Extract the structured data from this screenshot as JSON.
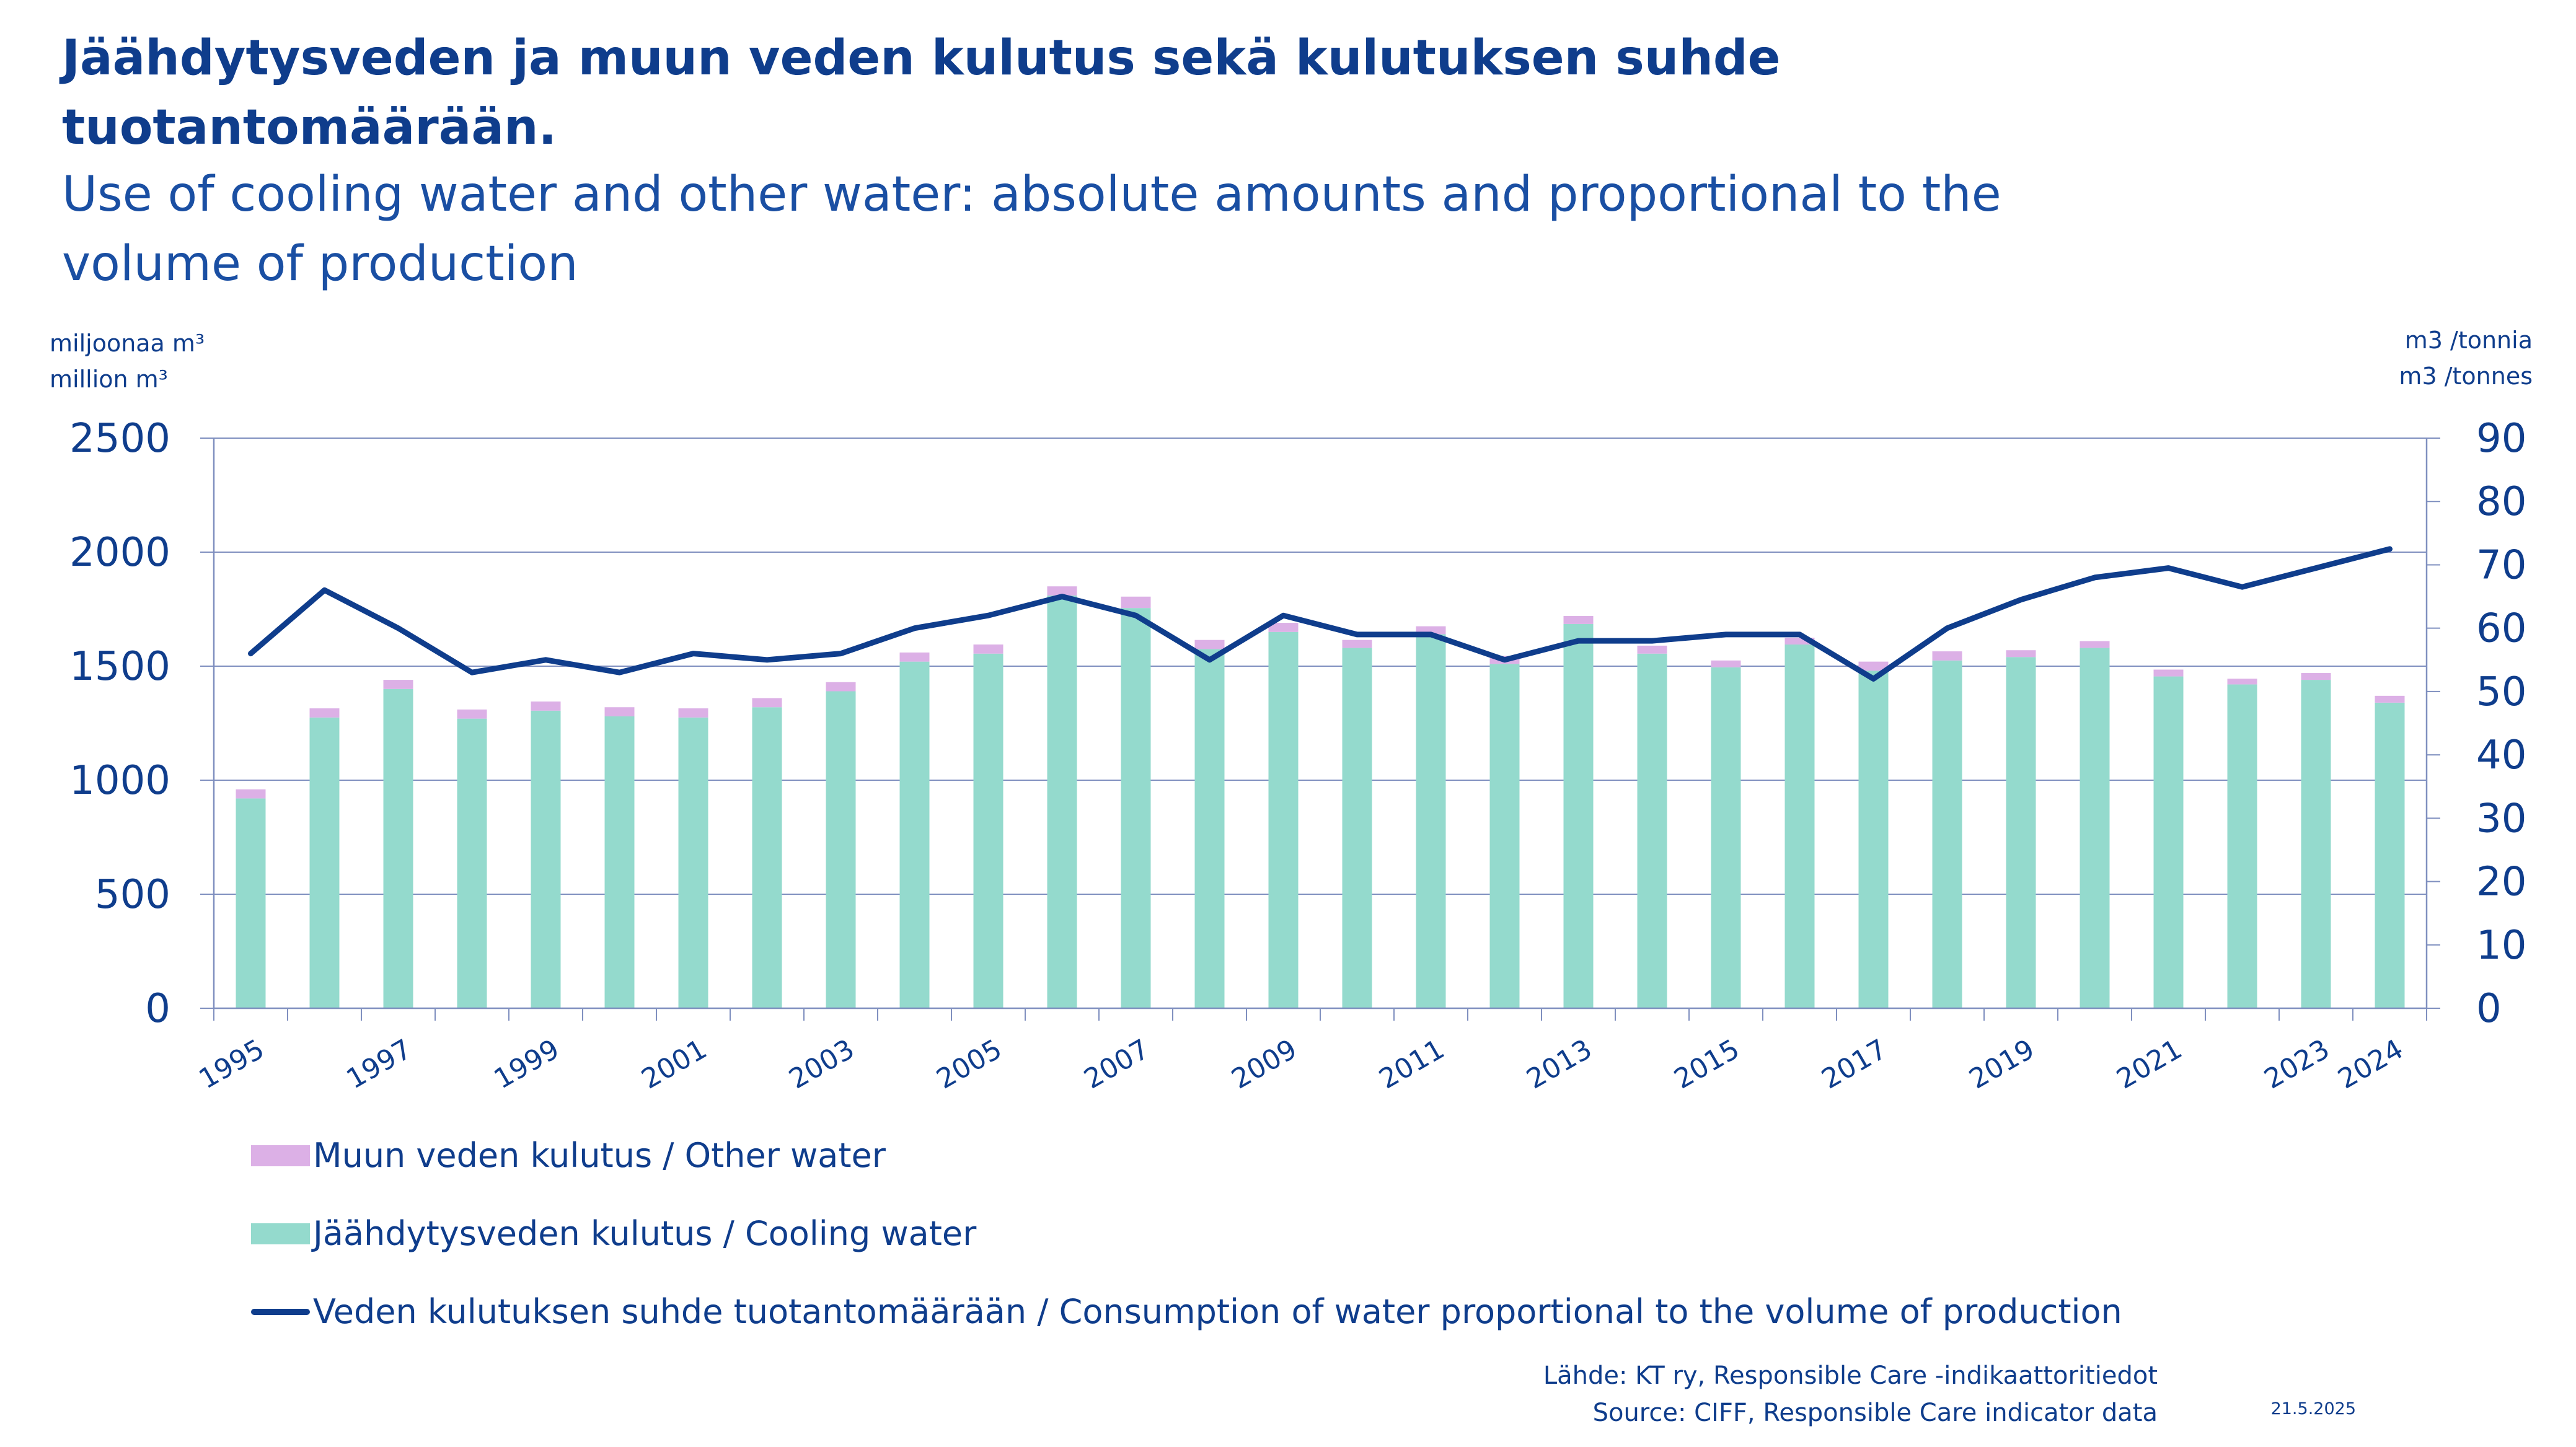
{
  "title": {
    "fi_line1": "Jäähdytysveden ja muun veden kulutus sekä kulutuksen suhde",
    "fi_line2": "tuotantomäärään.",
    "en_line1": "Use of cooling water and other water: absolute amounts and proportional to the",
    "en_line2": "volume of production"
  },
  "axis_units": {
    "left_fi": "miljoonaa m³",
    "left_en": "million m³",
    "right_fi": "m3 /tonnia",
    "right_en": "m3 /tonnes"
  },
  "legend": {
    "other_water": "Muun veden kulutus / Other water",
    "cooling_water": "Jäähdytysveden kulutus / Cooling water",
    "ratio": "Veden kulutuksen suhde tuotantomäärään / Consumption of water proportional to the volume of production"
  },
  "source": {
    "fi": "Lähde: KT ry, Responsible Care -indikaattoritiedot",
    "en": "Source: CIFF, Responsible Care indicator data"
  },
  "date": "21.5.2025",
  "colors": {
    "cooling": "#94dacd",
    "other": "#dcb0e6",
    "line": "#0f3d8c",
    "grid": "#7f8fbf",
    "text": "#0f3d8c"
  },
  "chart_data": {
    "type": "bar",
    "stacked": true,
    "categories": [
      "1995",
      "1996",
      "1997",
      "1998",
      "1999",
      "2000",
      "2001",
      "2002",
      "2003",
      "2004",
      "2005",
      "2006",
      "2007",
      "2008",
      "2009",
      "2010",
      "2011",
      "2012",
      "2013",
      "2014",
      "2015",
      "2016",
      "2017",
      "2018",
      "2019",
      "2020",
      "2021",
      "2022",
      "2023",
      "2024"
    ],
    "x_tick_labels": [
      "1995",
      "1997",
      "1999",
      "2001",
      "2003",
      "2005",
      "2007",
      "2009",
      "2011",
      "2013",
      "2015",
      "2017",
      "2019",
      "2021",
      "2023",
      "2024"
    ],
    "series": [
      {
        "name": "Jäähdytysveden kulutus / Cooling water",
        "axis": "left",
        "type": "bar",
        "values": [
          920,
          1275,
          1400,
          1270,
          1305,
          1280,
          1275,
          1320,
          1390,
          1520,
          1555,
          1810,
          1755,
          1575,
          1650,
          1580,
          1640,
          1510,
          1685,
          1555,
          1495,
          1595,
          1480,
          1525,
          1540,
          1580,
          1455,
          1420,
          1440,
          1340
        ]
      },
      {
        "name": "Muun veden kulutus / Other water",
        "axis": "left",
        "type": "bar",
        "values": [
          40,
          40,
          40,
          40,
          40,
          40,
          40,
          40,
          40,
          40,
          40,
          40,
          50,
          40,
          40,
          35,
          35,
          35,
          35,
          35,
          30,
          30,
          40,
          40,
          30,
          30,
          30,
          25,
          30,
          30
        ]
      },
      {
        "name": "Veden kulutuksen suhde tuotantomäärään / Consumption of water proportional to the volume of production",
        "axis": "right",
        "type": "line",
        "values": [
          56,
          66,
          60,
          53,
          55,
          53,
          56,
          55,
          56,
          60,
          62,
          65,
          62,
          55,
          62,
          59,
          59,
          55,
          58,
          58,
          59,
          59,
          52,
          60,
          64.5,
          68,
          69.5,
          66.5,
          69.5,
          72.5
        ]
      }
    ],
    "y_left": {
      "min": 0,
      "max": 2500,
      "ticks": [
        0,
        500,
        1000,
        1500,
        2000,
        2500
      ]
    },
    "y_right": {
      "min": 0,
      "max": 90,
      "ticks": [
        0,
        10,
        20,
        30,
        40,
        50,
        60,
        70,
        80,
        90
      ]
    },
    "grid": true,
    "legend_position": "bottom-left"
  }
}
